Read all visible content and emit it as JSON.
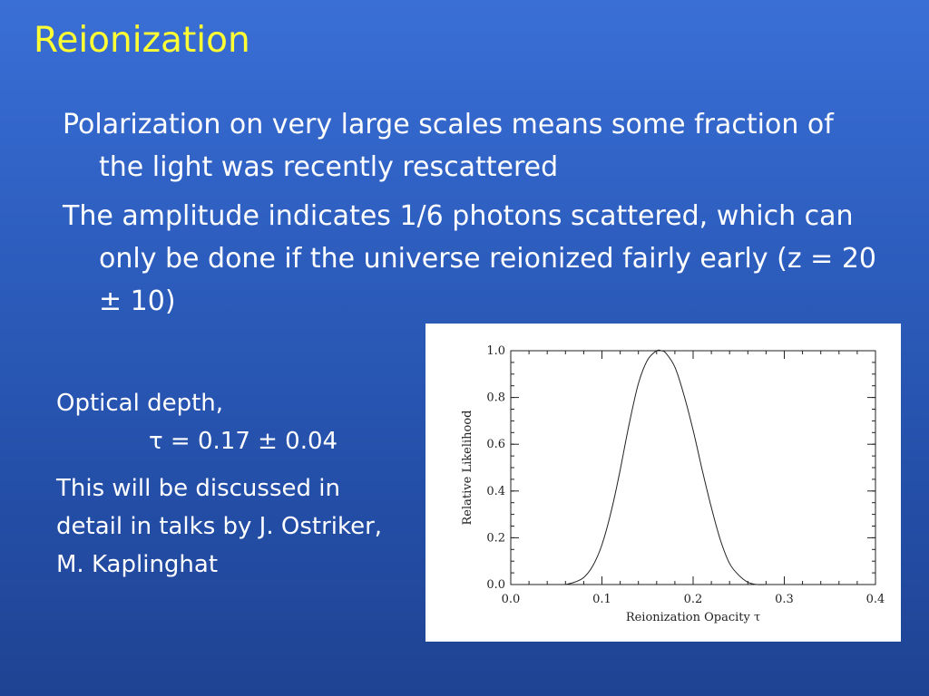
{
  "slide": {
    "title": "Reionization",
    "bullets": [
      "Polarization on very large scales means some fraction of the light was recently rescattered",
      "The amplitude indicates 1/6 photons scattered, which can only be done if the universe reionized fairly early (z = 20 ± 10)"
    ],
    "optical_depth": {
      "line1": "Optical depth,",
      "line2": "τ = 0.17 ± 0.04"
    },
    "note": "This will be discussed in detail in talks by J. Ostriker, M. Kaplinghat",
    "colors": {
      "title": "#ffff33",
      "text": "#ffffff",
      "background": "#2d5ebf"
    }
  },
  "chart_data": {
    "type": "line",
    "xlabel": "Reionization Opacity τ",
    "ylabel": "Relative Likelihood",
    "xlim": [
      0.0,
      0.4
    ],
    "ylim": [
      0.0,
      1.0
    ],
    "xticks": [
      "0.0",
      "0.1",
      "0.2",
      "0.3",
      "0.4"
    ],
    "yticks": [
      "0.0",
      "0.2",
      "0.4",
      "0.6",
      "0.8",
      "1.0"
    ],
    "grid": false,
    "series": [
      {
        "x": [
          0.06,
          0.07,
          0.08,
          0.09,
          0.1,
          0.11,
          0.12,
          0.13,
          0.14,
          0.15,
          0.16,
          0.165,
          0.17,
          0.18,
          0.19,
          0.2,
          0.21,
          0.22,
          0.23,
          0.24,
          0.25,
          0.26,
          0.27,
          0.28,
          0.29
        ],
        "y": [
          0.0,
          0.01,
          0.03,
          0.08,
          0.17,
          0.31,
          0.49,
          0.69,
          0.86,
          0.96,
          1.0,
          1.0,
          0.99,
          0.93,
          0.81,
          0.66,
          0.49,
          0.33,
          0.19,
          0.09,
          0.04,
          0.01,
          0.0,
          0.0,
          0.0
        ]
      }
    ]
  }
}
